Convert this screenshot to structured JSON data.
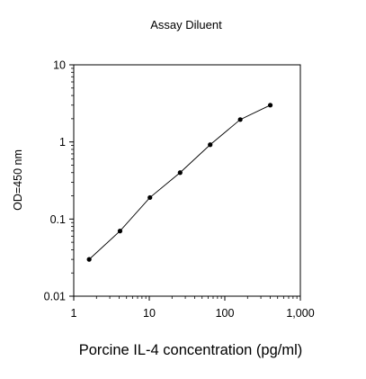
{
  "chart_data": {
    "type": "line",
    "title": "Assay Diluent",
    "xlabel": "Porcine IL-4 concentration (pg/ml)",
    "ylabel": "OD=450 nm",
    "x_scale": "log",
    "y_scale": "log",
    "xlim": [
      1,
      1000
    ],
    "ylim": [
      0.01,
      10
    ],
    "x_ticks": [
      "1",
      "10",
      "100",
      "1,000"
    ],
    "y_ticks": [
      "0.01",
      "0.1",
      "1",
      "10"
    ],
    "grid": false,
    "series": [
      {
        "x": [
          1.6,
          4.1,
          10.2,
          25.6,
          64,
          160,
          400
        ],
        "y": [
          0.03,
          0.07,
          0.19,
          0.4,
          0.92,
          1.95,
          3.0
        ],
        "color": "#000000",
        "marker": "circle"
      }
    ]
  }
}
